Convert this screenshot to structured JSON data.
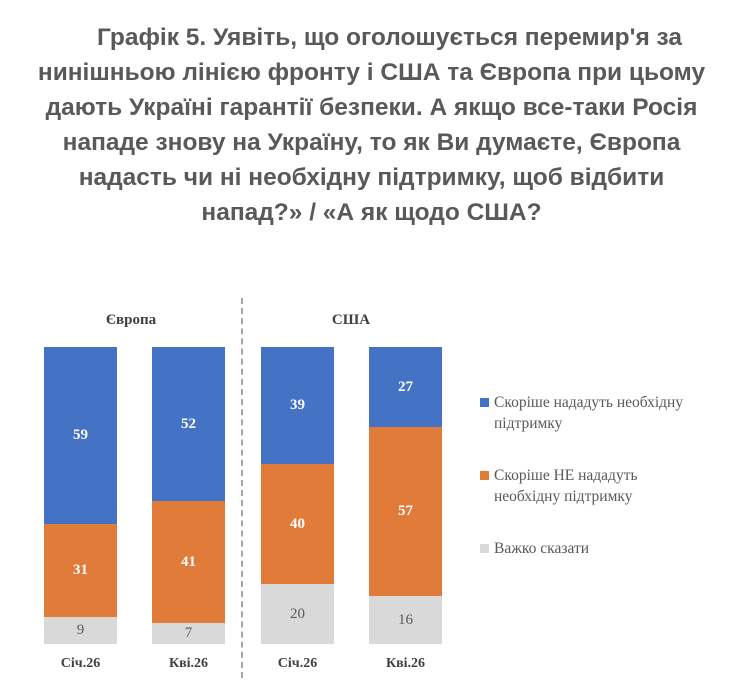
{
  "title_lines": [
    "Графік 5. Уявіть, що оголошується перемир'я за",
    "нинішньою лінією фронту і США та Європа при цьому",
    "дають Україні гарантії безпеки. А якщо все-таки Росія",
    "нападе знову на Україну, то як Ви думаєте, Європа",
    "надасть чи ні необхідну підтримку, щоб відбити",
    "напад?» / «А як щодо США?"
  ],
  "chart_data": {
    "type": "bar",
    "stacked": true,
    "title": "Графік 5. Уявіть, що оголошується перемир'я за нинішньою лінією фронту і США та Європа при цьому дають Україні гарантії безпеки. А якщо все-таки Росія нападе знову на Україну, то як Ви думаєте, Європа надасть чи ні необхідну підтримку, щоб відбити напад?» / «А як щодо США?",
    "groups": [
      "Європа",
      "США"
    ],
    "categories": [
      "Січ.26",
      "Кві.26",
      "Січ.26",
      "Кві.26"
    ],
    "series": [
      {
        "name": "Скоріше нададуть необхідну підтримку",
        "color": "#4472C4",
        "values": [
          59,
          52,
          39,
          27
        ]
      },
      {
        "name": "Скоріше НЕ нададуть необхідну підтримку",
        "color": "#E07B3A",
        "values": [
          31,
          41,
          40,
          57
        ]
      },
      {
        "name": "Важко сказати",
        "color": "#D9D9D9",
        "values": [
          9,
          7,
          20,
          16
        ]
      }
    ],
    "legend_lines": [
      [
        "Скоріше нададуть необхідну",
        "підтримку"
      ],
      [
        "Скоріше НЕ нададуть",
        "необхідну підтримку"
      ],
      [
        "Важко сказати"
      ]
    ],
    "legend_position": "right",
    "ylim": [
      0,
      100
    ],
    "grid": false
  }
}
